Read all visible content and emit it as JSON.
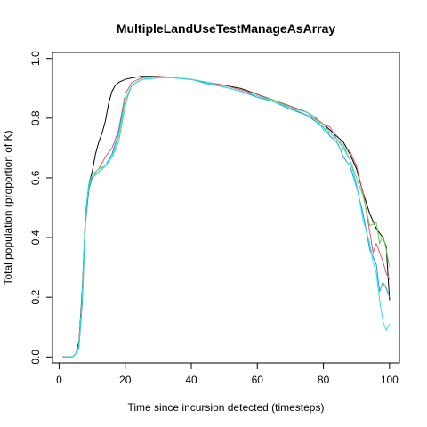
{
  "chart_data": {
    "type": "line",
    "title": "MultipleLandUseTestManageAsArray",
    "xlabel": "Time since incursion detected (timesteps)",
    "ylabel": "Total population (proportion of K)",
    "xlim": [
      -2,
      103
    ],
    "ylim": [
      -0.02,
      1.02
    ],
    "x_ticks": [
      0,
      20,
      40,
      60,
      80,
      100
    ],
    "y_ticks": [
      0.0,
      0.2,
      0.4,
      0.6,
      0.8,
      1.0
    ],
    "x_tick_labels": [
      "0",
      "20",
      "40",
      "60",
      "80",
      "100"
    ],
    "y_tick_labels": [
      "0.0",
      "0.2",
      "0.4",
      "0.6",
      "0.8",
      "1.0"
    ],
    "grid": false,
    "series": [
      {
        "color": "#000000",
        "points": [
          [
            1,
            0
          ],
          [
            4,
            0
          ],
          [
            5,
            0.01
          ],
          [
            6,
            0.05
          ],
          [
            7,
            0.22
          ],
          [
            8,
            0.48
          ],
          [
            9,
            0.58
          ],
          [
            10,
            0.62
          ],
          [
            11,
            0.68
          ],
          [
            12,
            0.72
          ],
          [
            13,
            0.75
          ],
          [
            14,
            0.79
          ],
          [
            15,
            0.85
          ],
          [
            16,
            0.89
          ],
          [
            17,
            0.91
          ],
          [
            18,
            0.92
          ],
          [
            20,
            0.93
          ],
          [
            22,
            0.935
          ],
          [
            25,
            0.94
          ],
          [
            28,
            0.94
          ],
          [
            30,
            0.94
          ],
          [
            35,
            0.935
          ],
          [
            40,
            0.93
          ],
          [
            45,
            0.92
          ],
          [
            50,
            0.91
          ],
          [
            55,
            0.9
          ],
          [
            60,
            0.88
          ],
          [
            65,
            0.86
          ],
          [
            70,
            0.84
          ],
          [
            75,
            0.82
          ],
          [
            80,
            0.78
          ],
          [
            82,
            0.76
          ],
          [
            84,
            0.74
          ],
          [
            86,
            0.72
          ],
          [
            88,
            0.68
          ],
          [
            90,
            0.63
          ],
          [
            92,
            0.55
          ],
          [
            94,
            0.48
          ],
          [
            96,
            0.43
          ],
          [
            98,
            0.4
          ],
          [
            99,
            0.37
          ],
          [
            100,
            0.19
          ]
        ]
      },
      {
        "color": "#df536b",
        "points": [
          [
            1,
            0
          ],
          [
            4,
            0
          ],
          [
            5,
            0.01
          ],
          [
            6,
            0.04
          ],
          [
            7,
            0.2
          ],
          [
            8,
            0.47
          ],
          [
            9,
            0.57
          ],
          [
            10,
            0.61
          ],
          [
            12,
            0.63
          ],
          [
            14,
            0.67
          ],
          [
            16,
            0.7
          ],
          [
            18,
            0.76
          ],
          [
            19,
            0.82
          ],
          [
            20,
            0.88
          ],
          [
            22,
            0.92
          ],
          [
            25,
            0.935
          ],
          [
            30,
            0.94
          ],
          [
            35,
            0.935
          ],
          [
            40,
            0.93
          ],
          [
            45,
            0.92
          ],
          [
            50,
            0.91
          ],
          [
            55,
            0.895
          ],
          [
            60,
            0.88
          ],
          [
            65,
            0.86
          ],
          [
            70,
            0.84
          ],
          [
            75,
            0.82
          ],
          [
            80,
            0.78
          ],
          [
            82,
            0.77
          ],
          [
            84,
            0.73
          ],
          [
            86,
            0.7
          ],
          [
            88,
            0.69
          ],
          [
            90,
            0.64
          ],
          [
            92,
            0.55
          ],
          [
            94,
            0.42
          ],
          [
            95,
            0.35
          ],
          [
            96,
            0.38
          ],
          [
            98,
            0.32
          ],
          [
            99,
            0.28
          ],
          [
            100,
            0.26
          ]
        ]
      },
      {
        "color": "#61d04f",
        "points": [
          [
            1,
            0
          ],
          [
            4,
            0
          ],
          [
            5,
            0.01
          ],
          [
            6,
            0.04
          ],
          [
            7,
            0.19
          ],
          [
            8,
            0.46
          ],
          [
            9,
            0.57
          ],
          [
            10,
            0.61
          ],
          [
            12,
            0.63
          ],
          [
            14,
            0.64
          ],
          [
            16,
            0.67
          ],
          [
            18,
            0.72
          ],
          [
            19,
            0.78
          ],
          [
            20,
            0.84
          ],
          [
            21,
            0.88
          ],
          [
            22,
            0.91
          ],
          [
            25,
            0.93
          ],
          [
            30,
            0.935
          ],
          [
            35,
            0.935
          ],
          [
            40,
            0.93
          ],
          [
            45,
            0.92
          ],
          [
            50,
            0.905
          ],
          [
            55,
            0.89
          ],
          [
            60,
            0.875
          ],
          [
            65,
            0.86
          ],
          [
            70,
            0.835
          ],
          [
            75,
            0.81
          ],
          [
            80,
            0.78
          ],
          [
            82,
            0.75
          ],
          [
            84,
            0.73
          ],
          [
            86,
            0.71
          ],
          [
            88,
            0.66
          ],
          [
            90,
            0.6
          ],
          [
            92,
            0.54
          ],
          [
            94,
            0.44
          ],
          [
            96,
            0.45
          ],
          [
            97,
            0.38
          ],
          [
            98,
            0.41
          ],
          [
            99,
            0.36
          ],
          [
            100,
            0.3
          ]
        ]
      },
      {
        "color": "#2297e6",
        "points": [
          [
            1,
            0
          ],
          [
            4,
            0
          ],
          [
            5,
            0.01
          ],
          [
            6,
            0.03
          ],
          [
            7,
            0.18
          ],
          [
            8,
            0.45
          ],
          [
            9,
            0.56
          ],
          [
            10,
            0.6
          ],
          [
            12,
            0.62
          ],
          [
            14,
            0.64
          ],
          [
            16,
            0.68
          ],
          [
            18,
            0.75
          ],
          [
            19,
            0.81
          ],
          [
            20,
            0.86
          ],
          [
            22,
            0.91
          ],
          [
            25,
            0.93
          ],
          [
            30,
            0.935
          ],
          [
            35,
            0.935
          ],
          [
            40,
            0.93
          ],
          [
            45,
            0.915
          ],
          [
            50,
            0.905
          ],
          [
            55,
            0.89
          ],
          [
            60,
            0.87
          ],
          [
            65,
            0.855
          ],
          [
            70,
            0.83
          ],
          [
            75,
            0.81
          ],
          [
            80,
            0.77
          ],
          [
            82,
            0.74
          ],
          [
            84,
            0.72
          ],
          [
            85,
            0.7
          ],
          [
            86,
            0.67
          ],
          [
            88,
            0.64
          ],
          [
            90,
            0.57
          ],
          [
            92,
            0.48
          ],
          [
            94,
            0.36
          ],
          [
            96,
            0.31
          ],
          [
            97,
            0.22
          ],
          [
            98,
            0.25
          ],
          [
            99,
            0.23
          ],
          [
            100,
            0.2
          ]
        ]
      },
      {
        "color": "#28e2e5",
        "points": [
          [
            1,
            0
          ],
          [
            4,
            0
          ],
          [
            5,
            0.01
          ],
          [
            6,
            0.04
          ],
          [
            7,
            0.2
          ],
          [
            8,
            0.48
          ],
          [
            9,
            0.58
          ],
          [
            10,
            0.61
          ],
          [
            12,
            0.62
          ],
          [
            14,
            0.64
          ],
          [
            16,
            0.67
          ],
          [
            18,
            0.74
          ],
          [
            19,
            0.8
          ],
          [
            20,
            0.86
          ],
          [
            22,
            0.91
          ],
          [
            25,
            0.93
          ],
          [
            30,
            0.935
          ],
          [
            35,
            0.935
          ],
          [
            40,
            0.93
          ],
          [
            45,
            0.92
          ],
          [
            50,
            0.905
          ],
          [
            55,
            0.89
          ],
          [
            60,
            0.875
          ],
          [
            65,
            0.855
          ],
          [
            70,
            0.835
          ],
          [
            75,
            0.82
          ],
          [
            78,
            0.8
          ],
          [
            80,
            0.76
          ],
          [
            82,
            0.75
          ],
          [
            84,
            0.73
          ],
          [
            86,
            0.7
          ],
          [
            88,
            0.66
          ],
          [
            90,
            0.58
          ],
          [
            92,
            0.46
          ],
          [
            94,
            0.38
          ],
          [
            95,
            0.32
          ],
          [
            96,
            0.28
          ],
          [
            97,
            0.19
          ],
          [
            98,
            0.12
          ],
          [
            99,
            0.09
          ],
          [
            100,
            0.11
          ]
        ]
      }
    ]
  }
}
